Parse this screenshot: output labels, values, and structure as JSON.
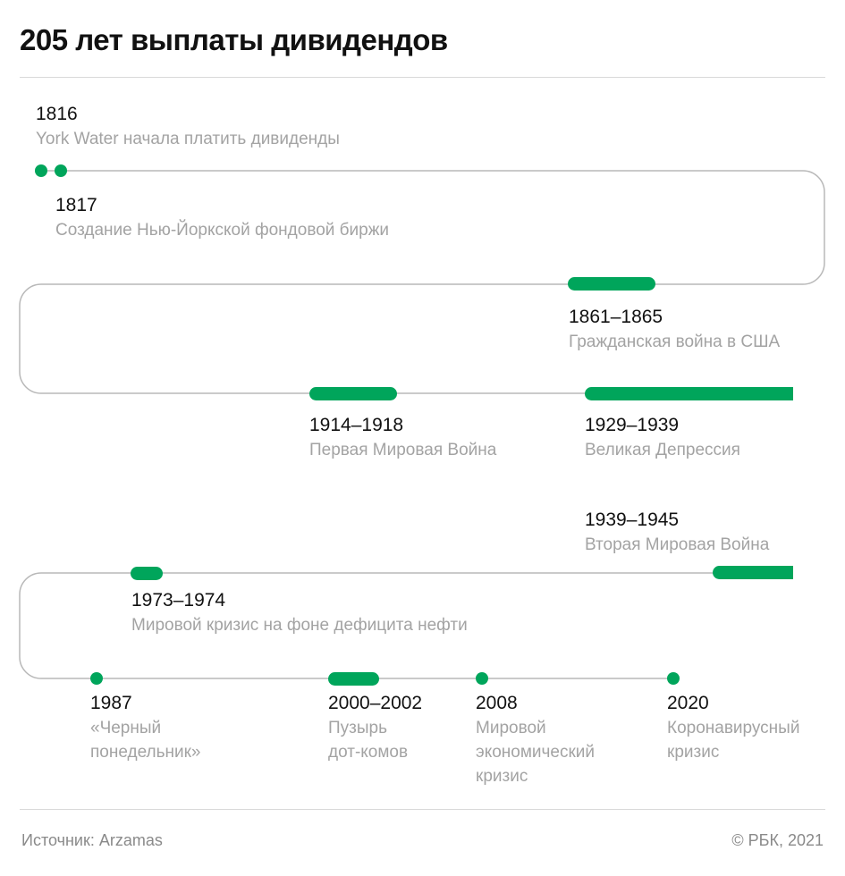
{
  "title": "205 лет выплаты дивидендов",
  "colors": {
    "accent": "#00a55b",
    "track": "#b8b8b8",
    "muted": "#a3a3a3"
  },
  "events": [
    {
      "year": "1816",
      "desc": "York Water начала платить дивиденды"
    },
    {
      "year": "1817",
      "desc": "Создание Нью-Йоркской фондовой биржи"
    },
    {
      "year": "1861–1865",
      "desc": "Гражданская война в США"
    },
    {
      "year": "1914–1918",
      "desc": "Первая Мировая Война"
    },
    {
      "year": "1929–1939",
      "desc": "Великая Депрессия"
    },
    {
      "year": "1939–1945",
      "desc": "Вторая Мировая Война"
    },
    {
      "year": "1973–1974",
      "desc": "Мировой кризис на фоне дефицита нефти"
    },
    {
      "year": "1987",
      "desc_lines": [
        "«Черный",
        "понедельник»"
      ]
    },
    {
      "year": "2000–2002",
      "desc_lines": [
        "Пузырь",
        "дот-комов"
      ]
    },
    {
      "year": "2008",
      "desc_lines": [
        "Мировой",
        "экономический",
        "кризис"
      ]
    },
    {
      "year": "2020",
      "desc_lines": [
        "Коронавирусный",
        "кризис"
      ]
    }
  ],
  "footer": {
    "source": "Источник: Arzamas",
    "copyright": "© РБК, 2021"
  }
}
